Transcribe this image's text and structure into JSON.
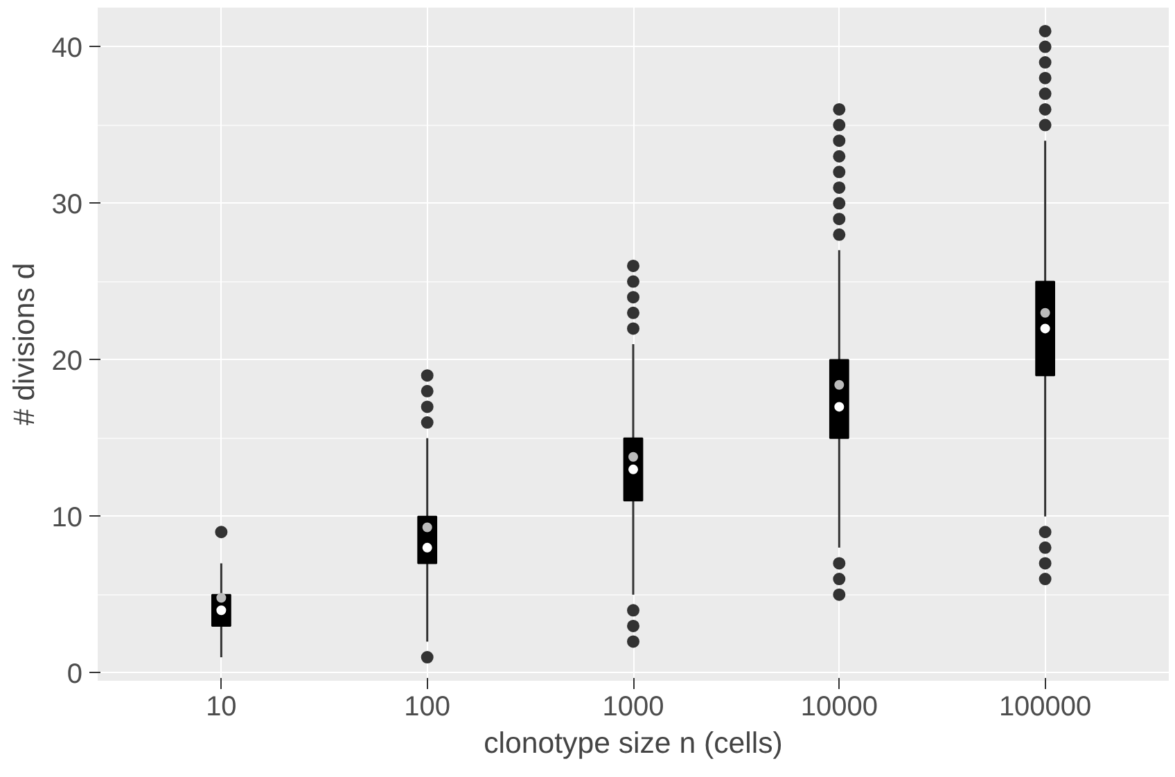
{
  "chart_data": {
    "type": "box",
    "xlabel": "clonotype size n (cells)",
    "ylabel": "# divisions d",
    "categories": [
      "10",
      "100",
      "1000",
      "10000",
      "100000"
    ],
    "boxes": [
      {
        "low": 1,
        "q1": 3,
        "median": 4,
        "q3": 5,
        "high": 7,
        "mean": 4.8,
        "outliers": [
          9
        ]
      },
      {
        "low": 2,
        "q1": 7,
        "median": 8,
        "q3": 10,
        "high": 15,
        "mean": 9.3,
        "outliers": [
          1,
          16,
          17,
          18,
          19
        ]
      },
      {
        "low": 5,
        "q1": 11,
        "median": 13,
        "q3": 15,
        "high": 21,
        "mean": 13.8,
        "outliers": [
          2,
          3,
          4,
          22,
          23,
          24,
          25,
          26
        ]
      },
      {
        "low": 8,
        "q1": 15,
        "median": 17,
        "q3": 20,
        "high": 27,
        "mean": 18.4,
        "outliers": [
          5,
          6,
          7,
          28,
          29,
          30,
          31,
          32,
          33,
          34,
          35,
          36
        ]
      },
      {
        "low": 10,
        "q1": 19,
        "median": 22,
        "q3": 25,
        "high": 34,
        "mean": 23,
        "outliers": [
          6,
          7,
          8,
          9,
          35,
          36,
          37,
          38,
          39,
          40,
          41
        ]
      }
    ],
    "ylim": [
      -0.5,
      42.5
    ],
    "yticks": [
      0,
      10,
      20,
      30,
      40
    ],
    "grid": true
  }
}
